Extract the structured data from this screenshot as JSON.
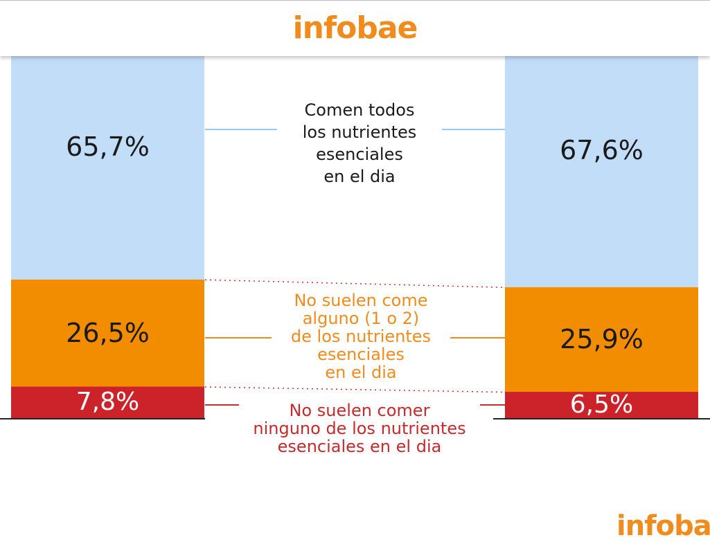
{
  "header": {
    "logo_text": "infobae"
  },
  "chart_data": {
    "type": "bar",
    "stacked": true,
    "categories": [
      "",
      ""
    ],
    "series": [
      {
        "name": "Comen todos los nutrientes esenciales en el dia",
        "color": "#c2ddf8",
        "values": [
          65.7,
          67.6
        ],
        "labels": [
          "65,7%",
          "67,6%"
        ]
      },
      {
        "name": "No suelen come alguno (1 o 2) de los nutrientes esenciales en el dia",
        "color": "#f28c00",
        "values": [
          26.5,
          25.9
        ],
        "labels": [
          "26,5%",
          "25,9%"
        ]
      },
      {
        "name": "No suelen comer ninguno de los nutrientes esenciales en el dia",
        "color": "#cc2229",
        "values": [
          7.8,
          6.5
        ],
        "labels": [
          "7,8%",
          "6,5%"
        ]
      }
    ],
    "legend_lines": [
      [
        "Comen todos",
        "los nutrientes",
        "esenciales",
        "en el dia"
      ],
      [
        "No suelen come",
        "alguno (1 o 2)",
        "de los nutrientes",
        "esenciales",
        "en el dia"
      ],
      [
        "No suelen comer",
        "ninguno de los nutrientes",
        "esenciales en el dia"
      ]
    ],
    "legend_placement": "center",
    "grid": false
  },
  "footer": {
    "logo_text": "infobae"
  }
}
